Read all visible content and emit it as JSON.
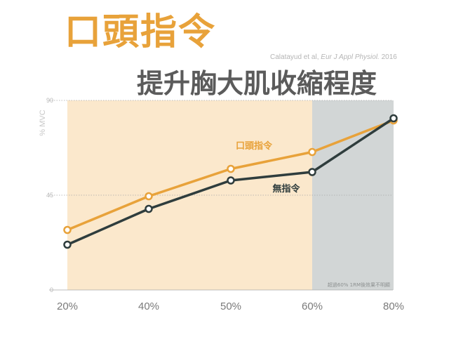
{
  "header": {
    "title": "口頭指令",
    "subtitle": "提升胸大肌收縮程度",
    "citation_authors": "Calatayud et al,",
    "citation_journal": "Eur J Appl Physiol.",
    "citation_year": "2016"
  },
  "colors": {
    "verbal_cue": "#e8a23a",
    "no_cue": "#2f3d3d",
    "region_light": "#fbe8cc",
    "region_gray": "#d2d6d6"
  },
  "chart_data": {
    "type": "line",
    "ylabel": "% MVC",
    "ylim": [
      0,
      90
    ],
    "yticks": [
      "0",
      "45",
      "90"
    ],
    "categories": [
      "20%",
      "40%",
      "50%",
      "60%",
      "80%"
    ],
    "series": [
      {
        "name": "口頭指令",
        "values": [
          28.5,
          44.5,
          57.5,
          65.5,
          80.5
        ]
      },
      {
        "name": "無指令",
        "values": [
          21.5,
          38.5,
          52,
          56,
          81.5
        ]
      }
    ],
    "shaded_regions": [
      {
        "from": "20%",
        "to": "60%",
        "style": "light"
      },
      {
        "from": "60%",
        "to": "80%",
        "style": "gray",
        "annotation": "超過60% 1RM後效果不明顯"
      }
    ],
    "grid": "y-dotted",
    "legend": "inline labels"
  }
}
